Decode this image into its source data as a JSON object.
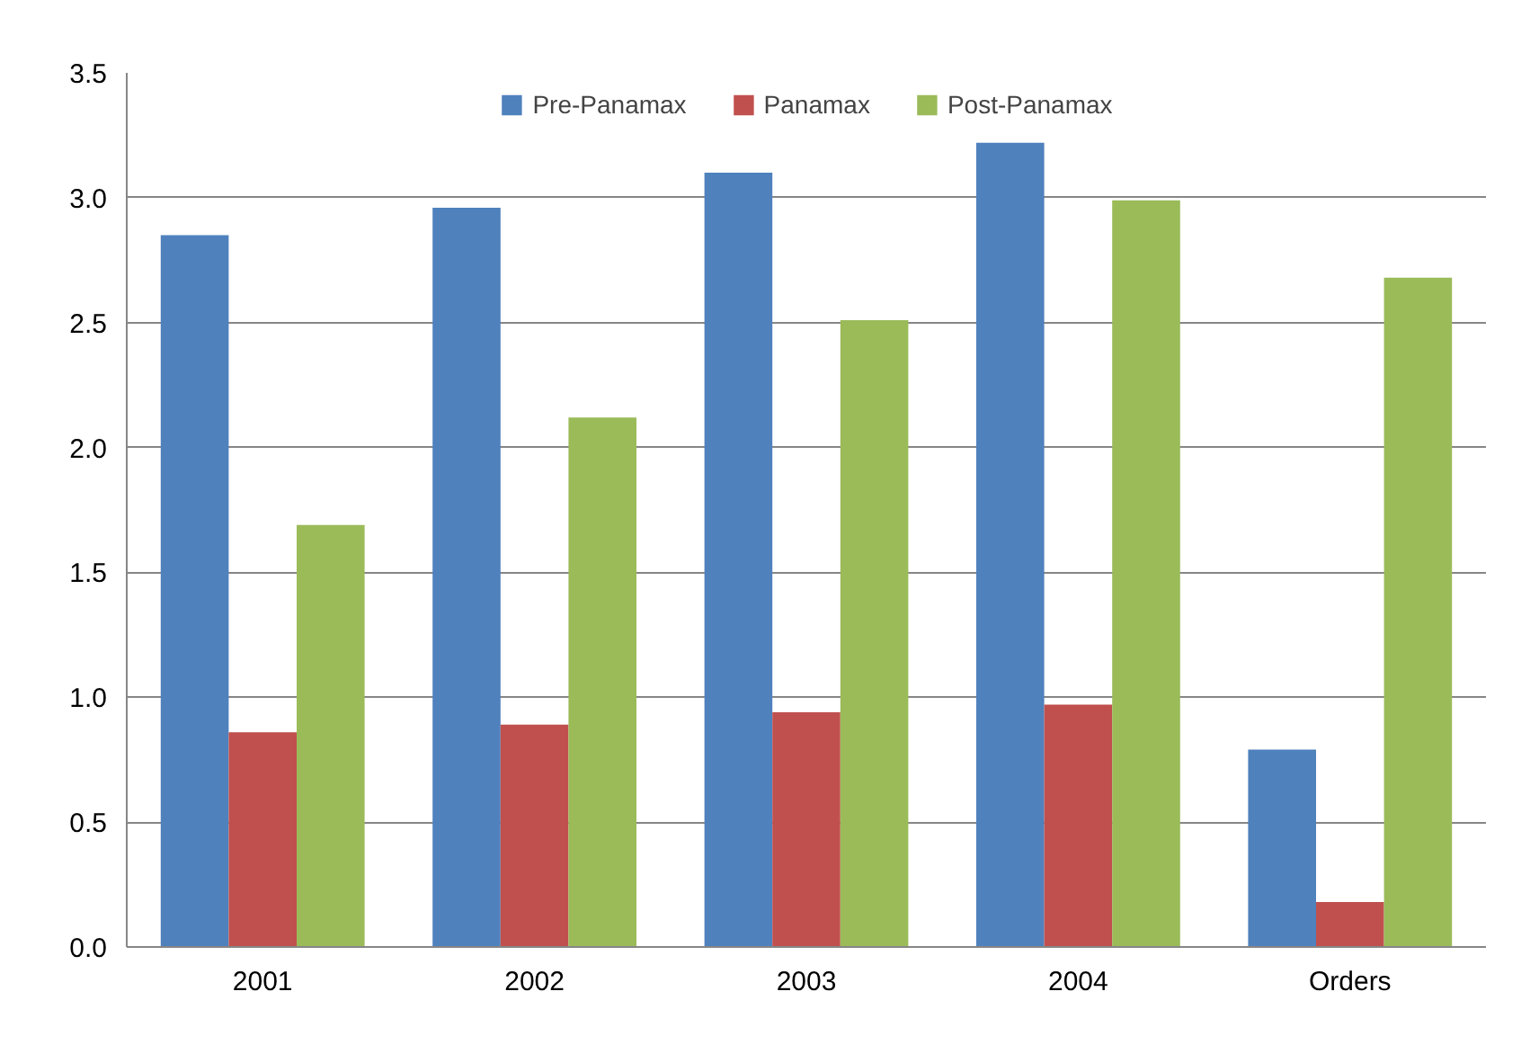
{
  "chart_data": {
    "type": "bar",
    "categories": [
      "2001",
      "2002",
      "2003",
      "2004",
      "Orders"
    ],
    "series": [
      {
        "name": "Pre-Panamax",
        "color": "#4f81bd",
        "values": [
          2.85,
          2.96,
          3.1,
          3.22,
          0.79
        ]
      },
      {
        "name": "Panamax",
        "color": "#c0504d",
        "values": [
          0.86,
          0.89,
          0.94,
          0.97,
          0.18
        ]
      },
      {
        "name": "Post-Panamax",
        "color": "#9bbb59",
        "values": [
          1.69,
          2.12,
          2.51,
          2.99,
          2.68
        ]
      }
    ],
    "ylim": [
      0,
      3.5
    ],
    "yticks": [
      {
        "value": 0,
        "label": "0.0"
      },
      {
        "value": 0.5,
        "label": "0.5"
      },
      {
        "value": 1,
        "label": "1.0"
      },
      {
        "value": 1.5,
        "label": "1.5"
      },
      {
        "value": 2,
        "label": "2.0"
      },
      {
        "value": 2.5,
        "label": "2.5"
      },
      {
        "value": 3,
        "label": "3.0"
      },
      {
        "value": 3.5,
        "label": "3.5"
      }
    ],
    "grid": "y",
    "legend": "top"
  }
}
